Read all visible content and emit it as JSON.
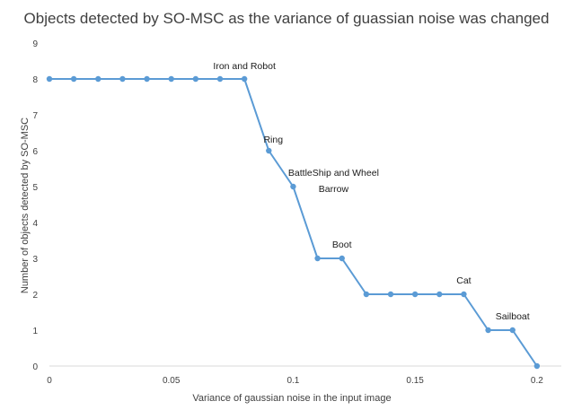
{
  "chart_data": {
    "type": "line",
    "title": "Objects detected by SO-MSC as the variance of guassian noise was changed",
    "xlabel": "Variance of gaussian noise in the input image",
    "ylabel": "Number  of objects detected  by SO-MSC",
    "xlim": [
      0,
      0.21
    ],
    "ylim": [
      0,
      9
    ],
    "x_ticks": [
      "0",
      "0.05",
      "0.1",
      "0.15",
      "0.2"
    ],
    "x_tick_values": [
      0,
      0.05,
      0.1,
      0.15,
      0.2
    ],
    "y_ticks": [
      "0",
      "1",
      "2",
      "3",
      "4",
      "5",
      "6",
      "7",
      "8",
      "9"
    ],
    "y_tick_values": [
      0,
      1,
      2,
      3,
      4,
      5,
      6,
      7,
      8,
      9
    ],
    "grid": false,
    "legend": "none",
    "series": [
      {
        "color": "#5b9bd5",
        "x": [
          0,
          0.01,
          0.02,
          0.03,
          0.04,
          0.05,
          0.06,
          0.07,
          0.08,
          0.09,
          0.1,
          0.11,
          0.12,
          0.13,
          0.14,
          0.15,
          0.16,
          0.17,
          0.18,
          0.19,
          0.2
        ],
        "y": [
          8,
          8,
          8,
          8,
          8,
          8,
          8,
          8,
          8,
          6,
          5,
          3,
          3,
          2,
          2,
          2,
          2,
          2,
          1,
          1,
          0
        ]
      }
    ],
    "annotations": [
      {
        "lines": [
          "Iron and Robot"
        ],
        "x": 0.08,
        "y": 8
      },
      {
        "lines": [
          "Ring"
        ],
        "x": 0.09,
        "y": 6
      },
      {
        "lines": [
          "BattleShip and Wheel",
          "Barrow"
        ],
        "x": 0.1,
        "y": 5
      },
      {
        "lines": [
          "Boot"
        ],
        "x": 0.12,
        "y": 3
      },
      {
        "lines": [
          "Cat"
        ],
        "x": 0.17,
        "y": 2
      },
      {
        "lines": [
          "Sailboat"
        ],
        "x": 0.19,
        "y": 1
      }
    ]
  }
}
